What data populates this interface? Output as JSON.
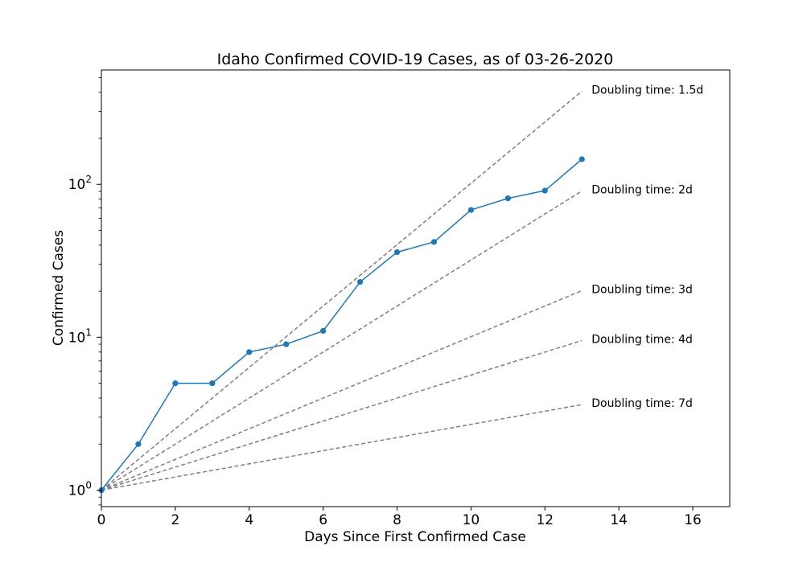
{
  "chart_data": {
    "type": "line",
    "title": "Idaho Confirmed COVID-19 Cases, as of 03-26-2020",
    "xlabel": "Days Since First Confirmed Case",
    "ylabel": "Confirmed Cases",
    "xlim": [
      0,
      17
    ],
    "ylim": [
      0.78,
      560
    ],
    "yscale": "log",
    "grid": false,
    "x_ticks": [
      0,
      2,
      4,
      6,
      8,
      10,
      12,
      14,
      16
    ],
    "y_major_ticks": [
      {
        "value": 1,
        "base": "10",
        "exp": "0"
      },
      {
        "value": 10,
        "base": "10",
        "exp": "1"
      },
      {
        "value": 100,
        "base": "10",
        "exp": "2"
      }
    ],
    "series": [
      {
        "color": "#1f77b4",
        "marker": "circle",
        "x": [
          0,
          1,
          2,
          3,
          4,
          5,
          6,
          7,
          8,
          9,
          10,
          11,
          12,
          13
        ],
        "y": [
          1,
          2,
          5,
          5,
          8,
          9,
          11,
          23,
          36,
          42,
          68,
          81,
          91,
          146
        ]
      }
    ],
    "reference_lines": [
      {
        "label": "Doubling time: 1.5d",
        "doubling_days": 1.5,
        "x_end": 13,
        "color": "#808080",
        "style": "dashed"
      },
      {
        "label": "Doubling time: 2d",
        "doubling_days": 2,
        "x_end": 13,
        "color": "#808080",
        "style": "dashed"
      },
      {
        "label": "Doubling time: 3d",
        "doubling_days": 3,
        "x_end": 13,
        "color": "#808080",
        "style": "dashed"
      },
      {
        "label": "Doubling time: 4d",
        "doubling_days": 4,
        "x_end": 13,
        "color": "#808080",
        "style": "dashed"
      },
      {
        "label": "Doubling time: 7d",
        "doubling_days": 7,
        "x_end": 13,
        "color": "#808080",
        "style": "dashed"
      }
    ]
  }
}
